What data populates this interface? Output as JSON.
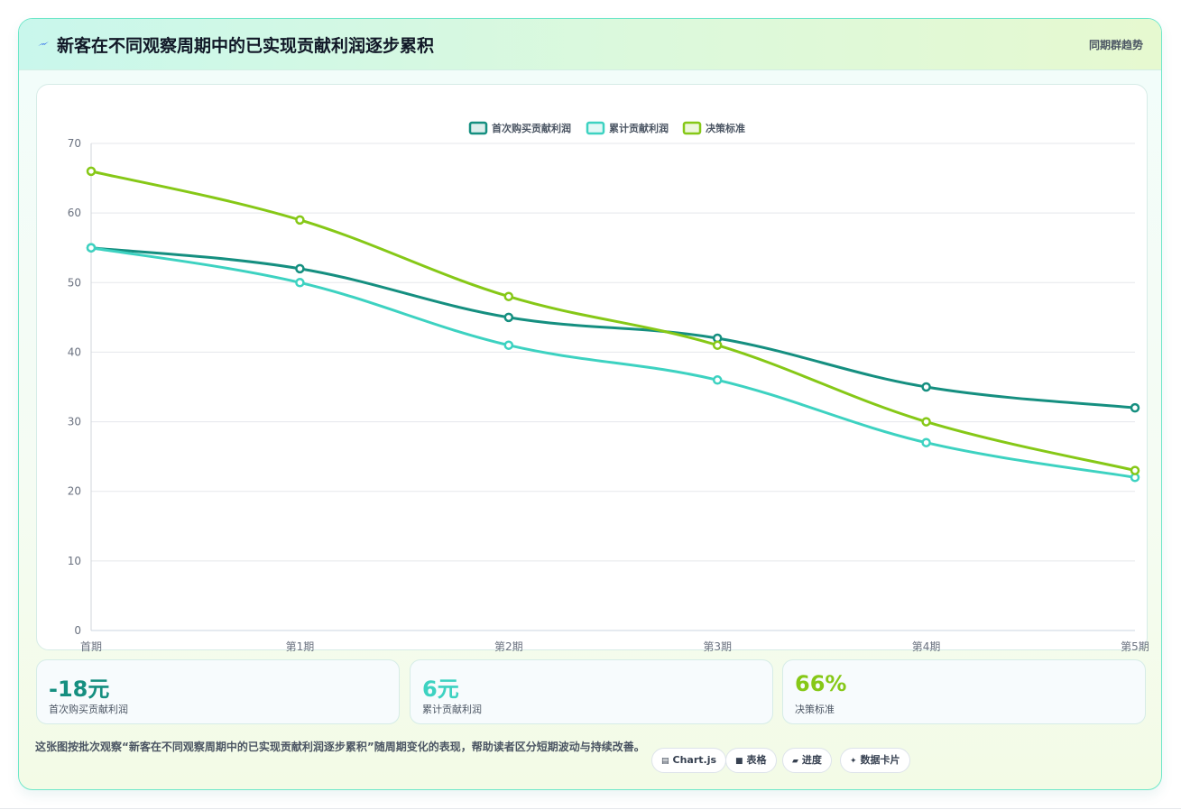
{
  "header": {
    "title": "新客在不同观察周期中的已实现贡献利润逐步累积",
    "link": "同期群趋势",
    "icon": "lightning-icon"
  },
  "colors": {
    "first_purchase": "#158f80",
    "cumulative": "#3dd2c1",
    "benchmark": "#86c817"
  },
  "chart_data": {
    "type": "line",
    "categories": [
      "首期",
      "第1期",
      "第2期",
      "第3期",
      "第4期",
      "第5期"
    ],
    "ylim": [
      0,
      70
    ],
    "yticks": [
      0,
      10,
      20,
      30,
      40,
      50,
      60,
      70
    ],
    "grid": true,
    "legend_position": "top",
    "series": [
      {
        "name": "首次购买贡献利润",
        "color": "#158f80",
        "values": [
          55,
          52,
          45,
          42,
          35,
          32
        ]
      },
      {
        "name": "累计贡献利润",
        "color": "#3dd2c1",
        "values": [
          55,
          50,
          41,
          36,
          27,
          22
        ]
      },
      {
        "name": "决策标准",
        "color": "#86c817",
        "values": [
          66,
          59,
          48,
          41,
          30,
          23
        ]
      }
    ]
  },
  "kpis": [
    {
      "value": "-18元",
      "label": "首次购买贡献利润",
      "color": "#158f80"
    },
    {
      "value": "6元",
      "label": "累计贡献利润",
      "color": "#3dd2c1"
    },
    {
      "value": "66%",
      "label": "决策标准",
      "color": "#86c817"
    }
  ],
  "caption": "这张图按批次观察“新客在不同观察周期中的已实现贡献利润逐步累积”随周期变化的表现，帮助读者区分短期波动与持续改善。",
  "chips": [
    {
      "label": "Chart.js",
      "icon": "chart-icon"
    },
    {
      "label": "表格",
      "icon": "table-icon"
    },
    {
      "label": "进度",
      "icon": "progress-icon"
    },
    {
      "label": "数据卡片",
      "icon": "sparkle-icon"
    }
  ]
}
